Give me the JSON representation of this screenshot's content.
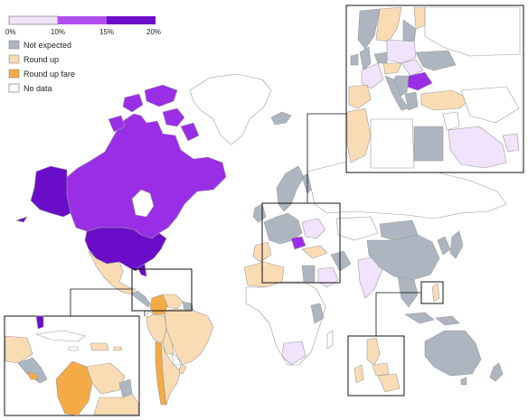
{
  "legend": {
    "scale": {
      "ticks": [
        "0%",
        "10%",
        "15%",
        "20%"
      ],
      "colors": [
        "#f1e3fb",
        "#b04ff0",
        "#9a2ee6",
        "#6a0dc9"
      ]
    },
    "categories": [
      {
        "label": "Not expected",
        "color": "#adb5c0"
      },
      {
        "label": "Round up",
        "color": "#fadcb4"
      },
      {
        "label": "Round up fare",
        "color": "#f5ab45"
      },
      {
        "label": "No data",
        "color": "#ffffff"
      }
    ]
  },
  "colors": {
    "tip_0_10": "#f1e3fb",
    "tip_10_15": "#b04ff0",
    "tip_15_20": "#9a2ee6",
    "tip_20": "#6a0dc9",
    "not_expected": "#adb5c0",
    "round_up": "#fadcb4",
    "round_up_fare": "#f5ab45",
    "no_data": "#ffffff",
    "border": "#9a9a9a"
  }
}
